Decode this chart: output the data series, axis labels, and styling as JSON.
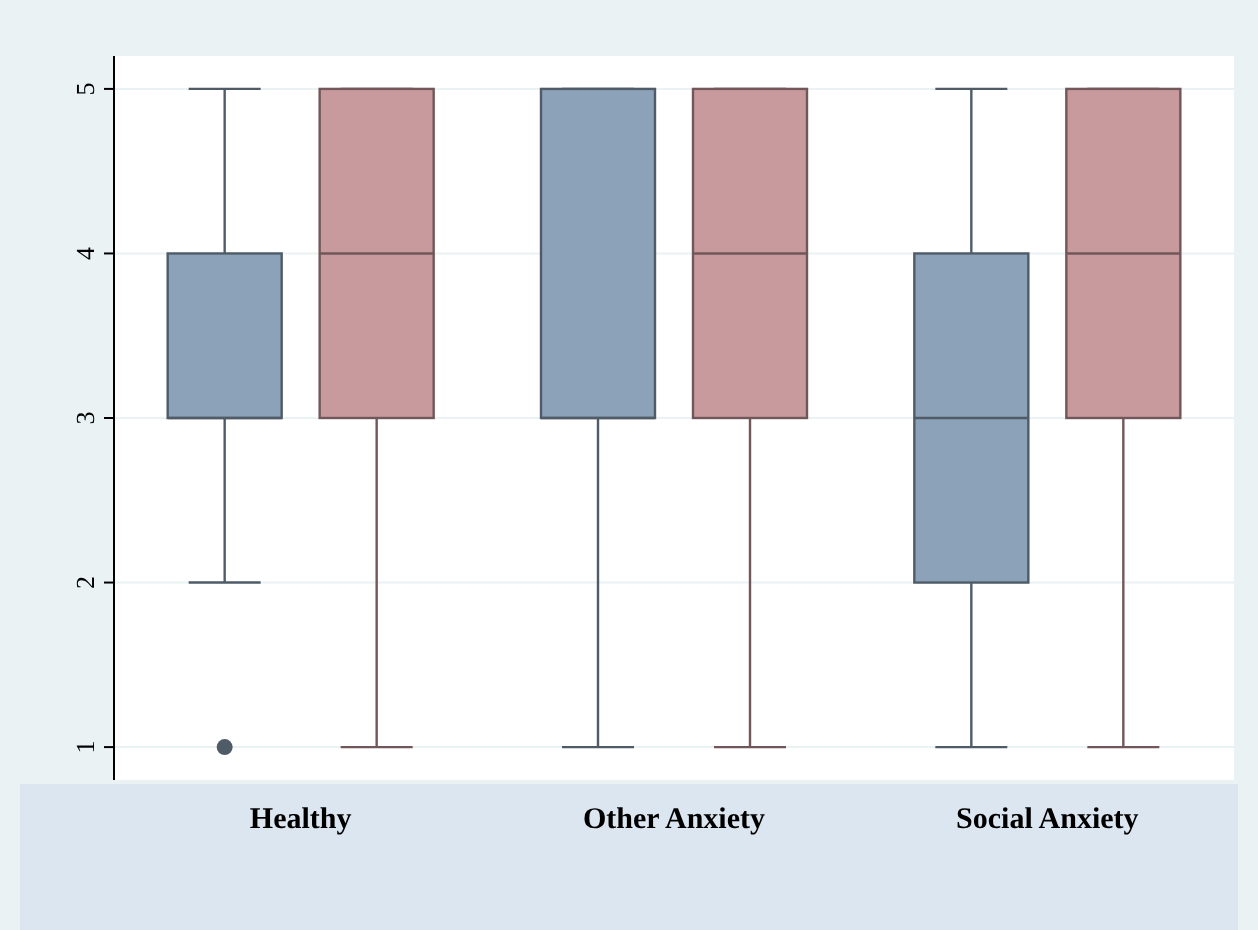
{
  "chart_data": {
    "type": "box",
    "categories": [
      "Healthy",
      "Other Anxiety",
      "Social Anxiety"
    ],
    "series": [
      {
        "color": "#8ca2b8",
        "boxes": [
          {
            "low": 2,
            "q1": 3,
            "median": 3,
            "q3": 4,
            "high": 5,
            "outliers": [
              1
            ]
          },
          {
            "low": 1,
            "q1": 3,
            "median": 3,
            "q3": 5,
            "high": 5
          },
          {
            "low": 1,
            "q1": 2,
            "median": 3,
            "q3": 4,
            "high": 5
          }
        ]
      },
      {
        "color": "#c89a9e",
        "boxes": [
          {
            "low": 1,
            "q1": 3,
            "median": 4,
            "q3": 5,
            "high": 5
          },
          {
            "low": 1,
            "q1": 3,
            "median": 4,
            "q3": 5,
            "high": 5
          },
          {
            "low": 1,
            "q1": 3,
            "median": 4,
            "q3": 5,
            "high": 5
          }
        ]
      }
    ],
    "ylim": [
      0.8,
      5.2
    ],
    "yticks": [
      1,
      2,
      3,
      4,
      5
    ],
    "grid": "y",
    "marker": "circle"
  }
}
